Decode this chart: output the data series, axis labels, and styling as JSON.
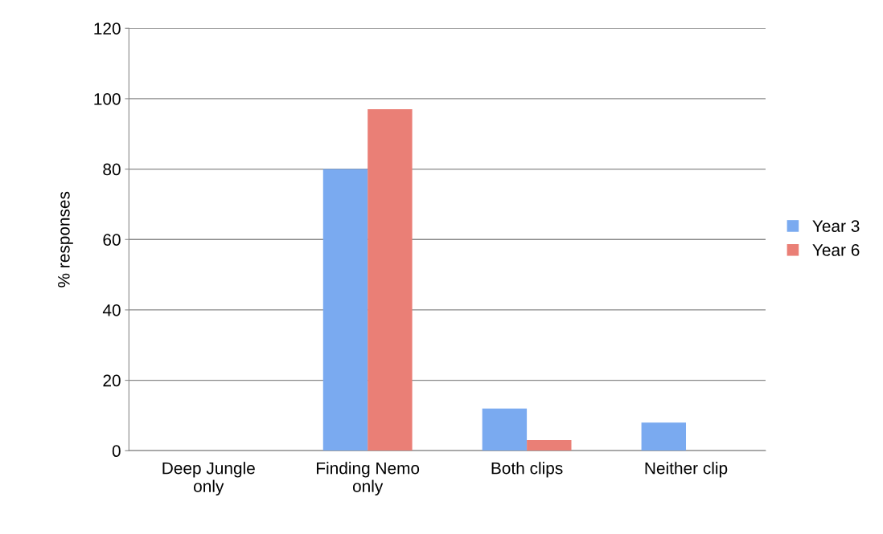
{
  "chart_data": {
    "type": "bar",
    "ylabel": "% responses",
    "categories": [
      "Deep Jungle\nonly",
      "Finding Nemo\nonly",
      "Both clips",
      "Neither clip"
    ],
    "series": [
      {
        "name": "Year 3",
        "color": "#7aaaf0",
        "values": [
          0,
          80,
          12,
          8
        ]
      },
      {
        "name": "Year 6",
        "color": "#ea7f76",
        "values": [
          0,
          97,
          3,
          0
        ]
      }
    ],
    "ylim": [
      0,
      120
    ],
    "yticks": [
      0,
      20,
      40,
      60,
      80,
      100,
      120
    ],
    "grid": "y",
    "legend": "right"
  }
}
